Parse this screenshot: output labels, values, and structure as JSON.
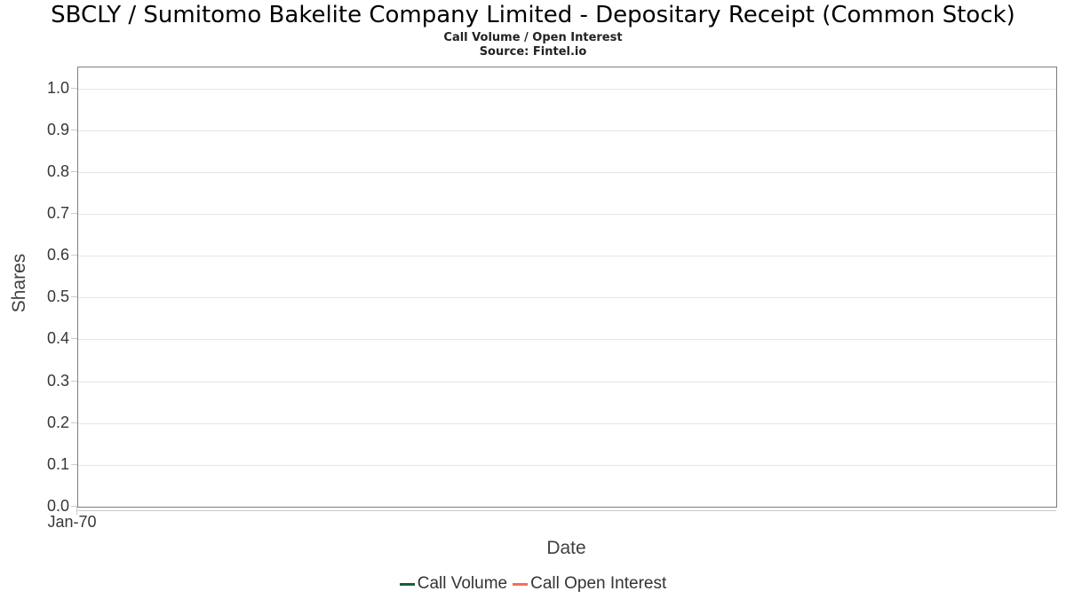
{
  "header": {
    "title": "SBCLY / Sumitomo Bakelite Company Limited - Depositary Receipt (Common Stock)",
    "subtitle": "Call Volume / Open Interest",
    "source": "Source: Fintel.io"
  },
  "chart_data": {
    "type": "line",
    "title": "SBCLY / Sumitomo Bakelite Company Limited - Depositary Receipt (Common Stock)",
    "subtitle": "Call Volume / Open Interest",
    "source": "Source: Fintel.io",
    "xlabel": "Date",
    "ylabel": "Shares",
    "ylim": [
      0,
      1.05
    ],
    "yticks": [
      0.0,
      0.1,
      0.2,
      0.3,
      0.4,
      0.5,
      0.6,
      0.7,
      0.8,
      0.9,
      1.0
    ],
    "ytick_labels": [
      "0.0",
      "0.1",
      "0.2",
      "0.3",
      "0.4",
      "0.5",
      "0.6",
      "0.7",
      "0.8",
      "0.9",
      "1.0"
    ],
    "xticks": [
      "Jan-70"
    ],
    "grid": true,
    "legend_position": "bottom-center",
    "series": [
      {
        "name": "Call Volume",
        "color": "#1e5c38",
        "x": [],
        "values": []
      },
      {
        "name": "Call Open Interest",
        "color": "#f96a62",
        "x": [],
        "values": []
      }
    ]
  },
  "colors": {
    "gridline": "#e6e6e6",
    "plot_border": "#7e7e7e",
    "tick": "#cccccc",
    "axis_label": "#373737",
    "axis_title": "#404040",
    "legend_text": "#333333"
  }
}
